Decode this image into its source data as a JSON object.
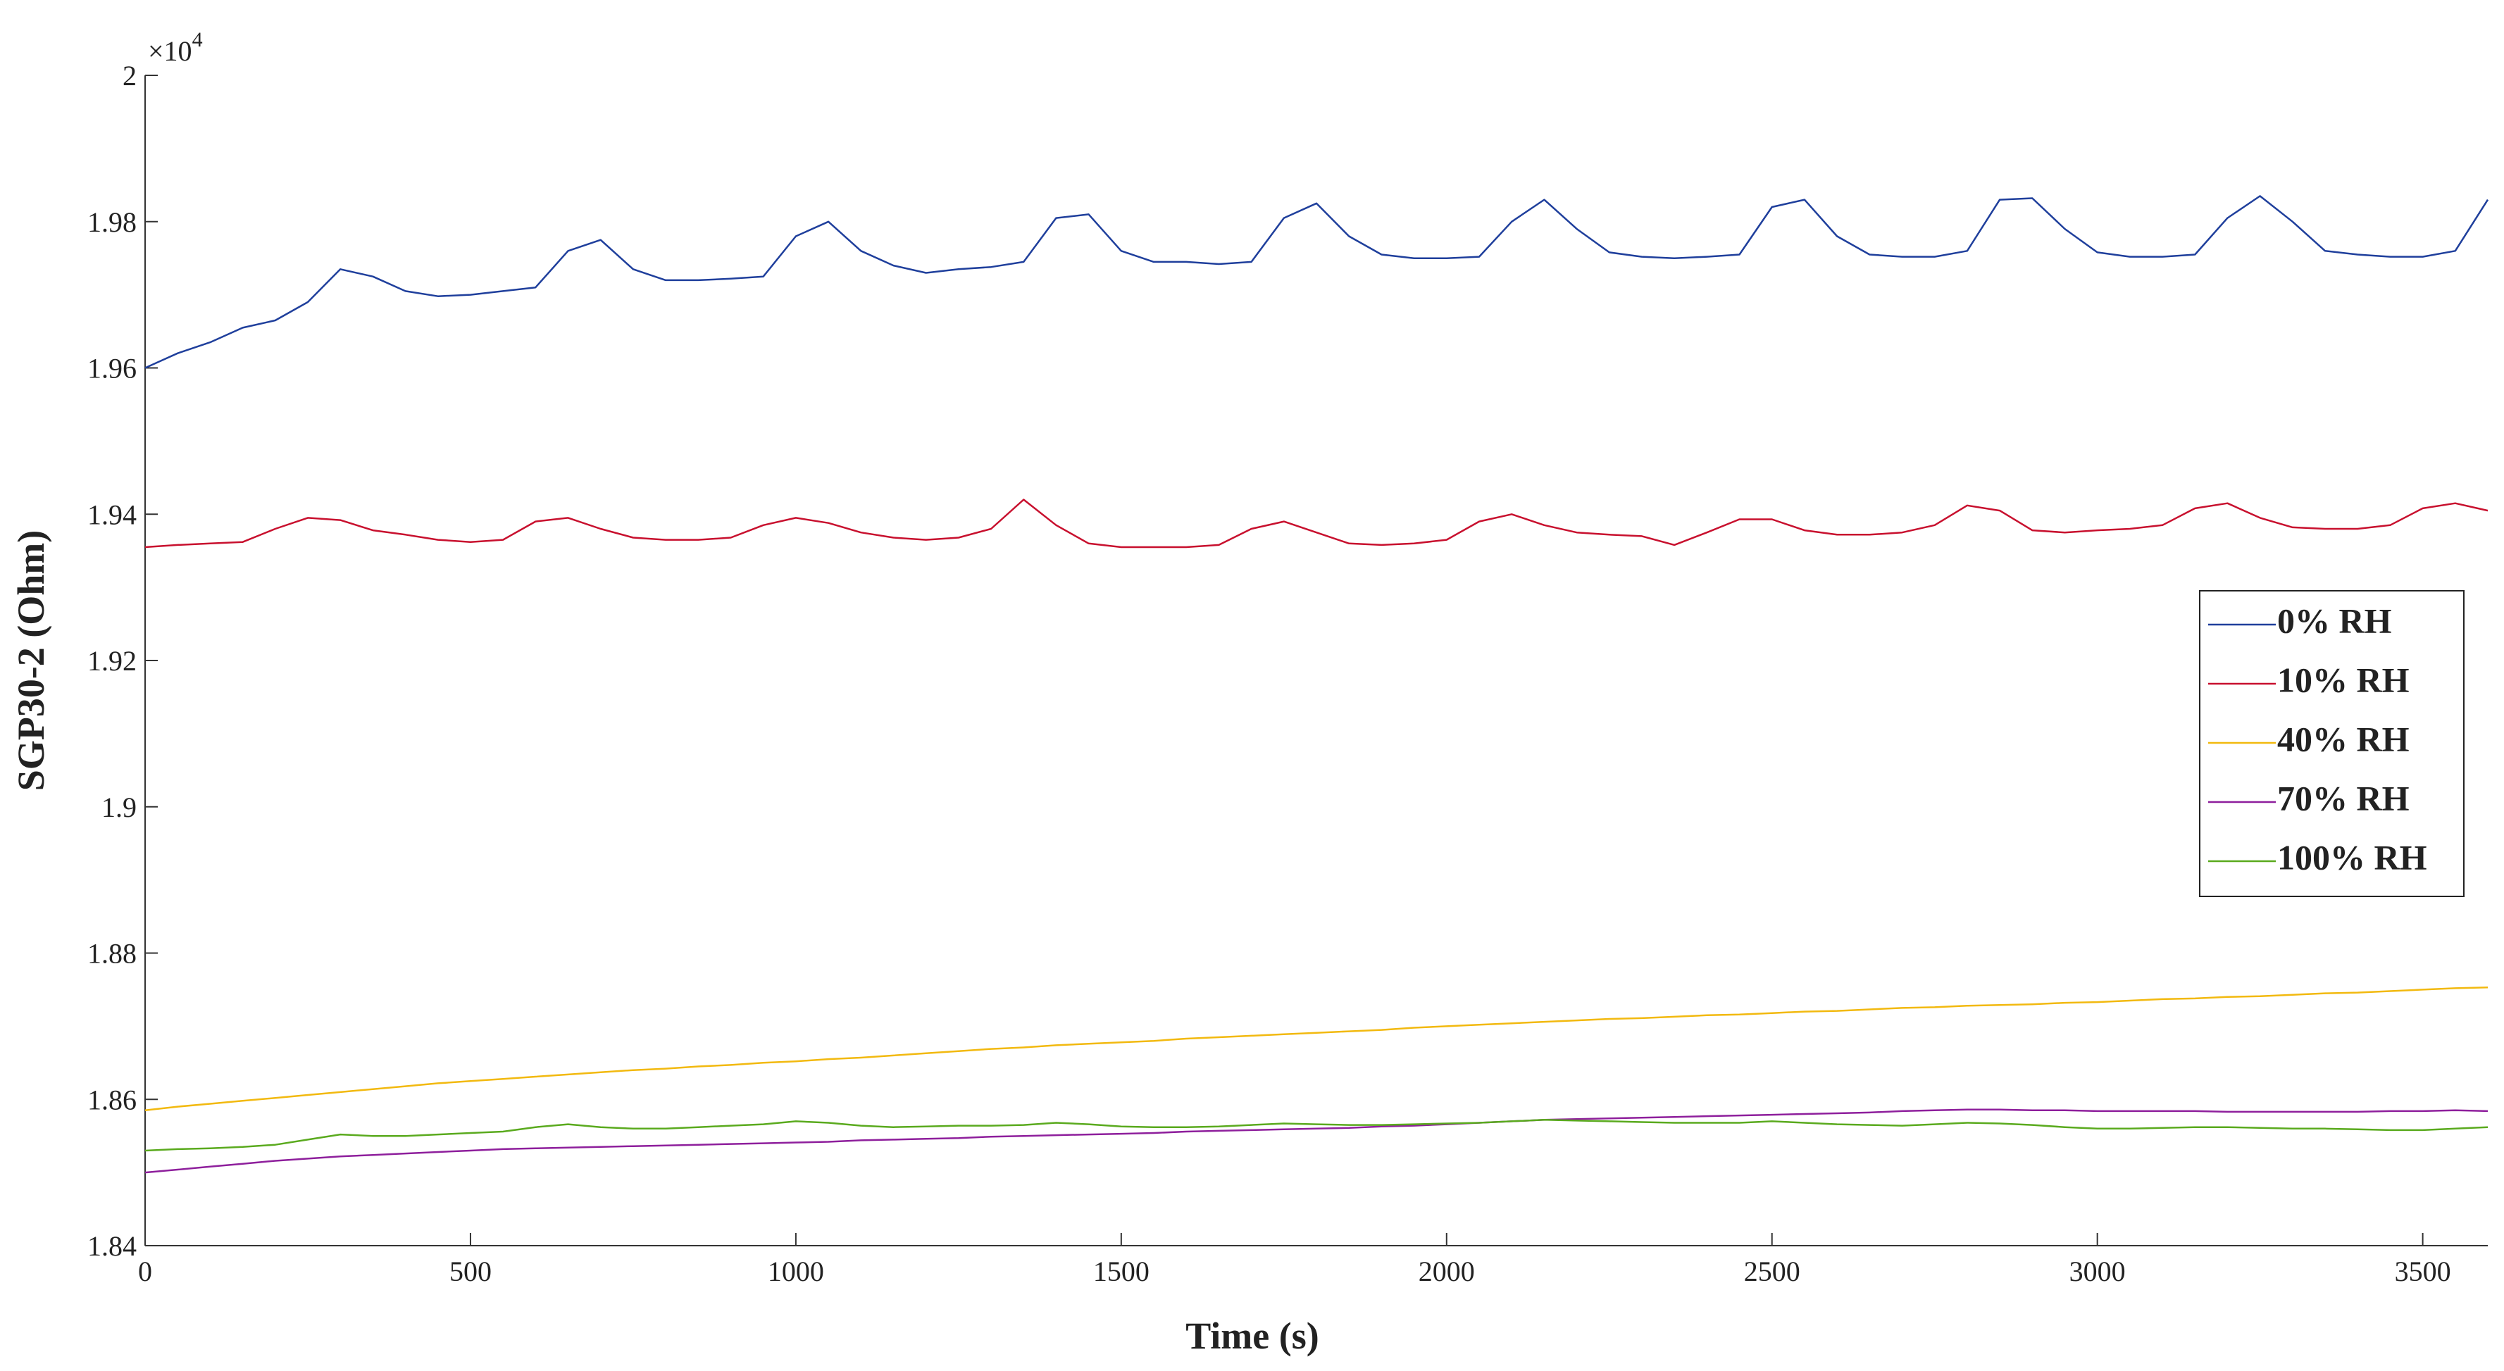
{
  "chart_data": {
    "type": "line",
    "xlabel": "Time (s)",
    "ylabel": "SGP30-2 (Ohm)",
    "y_multiplier": "×10",
    "y_multiplier_power": "4",
    "xlim": [
      0,
      3600
    ],
    "ylim": [
      18400,
      20000
    ],
    "xticks": [
      0,
      500,
      1000,
      1500,
      2000,
      2500,
      3000,
      3500
    ],
    "yticks": [
      {
        "value": 18400,
        "label": "1.84"
      },
      {
        "value": 18600,
        "label": "1.86"
      },
      {
        "value": 18800,
        "label": "1.88"
      },
      {
        "value": 19000,
        "label": "1.9"
      },
      {
        "value": 19200,
        "label": "1.92"
      },
      {
        "value": 19400,
        "label": "1.94"
      },
      {
        "value": 19600,
        "label": "1.96"
      },
      {
        "value": 19800,
        "label": "1.98"
      },
      {
        "value": 20000,
        "label": "2"
      }
    ],
    "grid": false,
    "legend_position": "right",
    "x": [
      0,
      50,
      100,
      150,
      200,
      250,
      300,
      350,
      400,
      450,
      500,
      550,
      600,
      650,
      700,
      750,
      800,
      850,
      900,
      950,
      1000,
      1050,
      1100,
      1150,
      1200,
      1250,
      1300,
      1350,
      1400,
      1450,
      1500,
      1550,
      1600,
      1650,
      1700,
      1750,
      1800,
      1850,
      1900,
      1950,
      2000,
      2050,
      2100,
      2150,
      2200,
      2250,
      2300,
      2350,
      2400,
      2450,
      2500,
      2550,
      2600,
      2650,
      2700,
      2750,
      2800,
      2850,
      2900,
      2950,
      3000,
      3050,
      3100,
      3150,
      3200,
      3250,
      3300,
      3350,
      3400,
      3450,
      3500,
      3550,
      3600
    ],
    "series": [
      {
        "name": "0% RH",
        "color": "#1f3f9c",
        "values": [
          19600,
          19620,
          19635,
          19655,
          19665,
          19690,
          19735,
          19725,
          19705,
          19698,
          19700,
          19705,
          19710,
          19760,
          19775,
          19735,
          19720,
          19720,
          19722,
          19725,
          19780,
          19800,
          19760,
          19740,
          19730,
          19735,
          19738,
          19745,
          19805,
          19810,
          19760,
          19745,
          19745,
          19742,
          19745,
          19805,
          19825,
          19780,
          19755,
          19750,
          19750,
          19752,
          19800,
          19830,
          19790,
          19758,
          19752,
          19750,
          19752,
          19755,
          19820,
          19830,
          19780,
          19755,
          19752,
          19752,
          19760,
          19830,
          19832,
          19790,
          19758,
          19752,
          19752,
          19755,
          19805,
          19835,
          19800,
          19760,
          19755,
          19752,
          19752,
          19760,
          19830
        ]
      },
      {
        "name": "10% RH",
        "color": "#c8102e",
        "values": [
          19355,
          19358,
          19360,
          19362,
          19380,
          19395,
          19392,
          19378,
          19372,
          19365,
          19362,
          19365,
          19390,
          19395,
          19380,
          19368,
          19365,
          19365,
          19368,
          19385,
          19395,
          19388,
          19375,
          19368,
          19365,
          19368,
          19380,
          19420,
          19385,
          19360,
          19355,
          19355,
          19355,
          19358,
          19380,
          19390,
          19375,
          19360,
          19358,
          19360,
          19365,
          19390,
          19400,
          19385,
          19375,
          19372,
          19370,
          19358,
          19375,
          19393,
          19393,
          19378,
          19372,
          19372,
          19375,
          19385,
          19412,
          19405,
          19378,
          19375,
          19378,
          19380,
          19385,
          19408,
          19415,
          19395,
          19382,
          19380,
          19380,
          19385,
          19408,
          19415,
          19405
        ]
      },
      {
        "name": "40% RH",
        "color": "#f2b90f",
        "values": [
          18585,
          18590,
          18594,
          18598,
          18602,
          18606,
          18610,
          18614,
          18618,
          18622,
          18625,
          18628,
          18631,
          18634,
          18637,
          18640,
          18642,
          18645,
          18647,
          18650,
          18652,
          18655,
          18657,
          18660,
          18663,
          18666,
          18669,
          18671,
          18674,
          18676,
          18678,
          18680,
          18683,
          18685,
          18687,
          18689,
          18691,
          18693,
          18695,
          18698,
          18700,
          18702,
          18704,
          18706,
          18708,
          18710,
          18711,
          18713,
          18715,
          18716,
          18718,
          18720,
          18721,
          18723,
          18725,
          18726,
          18728,
          18729,
          18730,
          18732,
          18733,
          18735,
          18737,
          18738,
          18740,
          18741,
          18743,
          18745,
          18746,
          18748,
          18750,
          18752,
          18753
        ]
      },
      {
        "name": "70% RH",
        "color": "#8e1f9c",
        "values": [
          18500,
          18504,
          18508,
          18512,
          18516,
          18519,
          18522,
          18524,
          18526,
          18528,
          18530,
          18532,
          18533,
          18534,
          18535,
          18536,
          18537,
          18538,
          18539,
          18540,
          18541,
          18542,
          18544,
          18545,
          18546,
          18547,
          18549,
          18550,
          18551,
          18552,
          18553,
          18554,
          18556,
          18557,
          18558,
          18559,
          18560,
          18561,
          18563,
          18564,
          18566,
          18568,
          18570,
          18572,
          18573,
          18574,
          18575,
          18576,
          18577,
          18578,
          18579,
          18580,
          18581,
          18582,
          18584,
          18585,
          18586,
          18586,
          18585,
          18585,
          18584,
          18584,
          18584,
          18584,
          18583,
          18583,
          18583,
          18583,
          18583,
          18584,
          18584,
          18585,
          18584
        ]
      },
      {
        "name": "100% RH",
        "color": "#5aaa1e",
        "values": [
          18530,
          18532,
          18533,
          18535,
          18538,
          18545,
          18552,
          18550,
          18550,
          18552,
          18554,
          18556,
          18562,
          18566,
          18562,
          18560,
          18560,
          18562,
          18564,
          18566,
          18570,
          18568,
          18564,
          18562,
          18563,
          18564,
          18564,
          18565,
          18568,
          18566,
          18563,
          18562,
          18562,
          18563,
          18565,
          18567,
          18566,
          18565,
          18565,
          18566,
          18567,
          18568,
          18570,
          18572,
          18571,
          18570,
          18569,
          18568,
          18568,
          18568,
          18570,
          18568,
          18566,
          18565,
          18564,
          18566,
          18568,
          18567,
          18565,
          18562,
          18560,
          18560,
          18561,
          18562,
          18562,
          18561,
          18560,
          18560,
          18559,
          18558,
          18558,
          18560,
          18562
        ]
      }
    ]
  }
}
